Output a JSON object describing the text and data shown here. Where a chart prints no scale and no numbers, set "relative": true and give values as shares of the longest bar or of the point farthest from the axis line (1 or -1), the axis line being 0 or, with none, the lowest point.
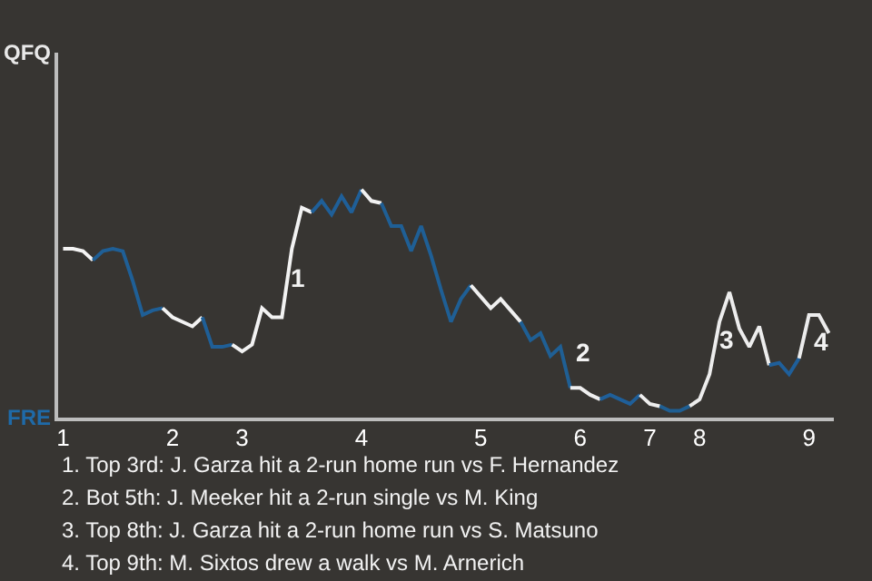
{
  "chart_data": {
    "type": "line",
    "relative": true,
    "marker": "none",
    "line_style": "solid",
    "categories": [
      "1",
      null,
      null,
      null,
      null,
      null,
      null,
      null,
      null,
      null,
      null,
      "2",
      null,
      null,
      null,
      null,
      null,
      null,
      "3",
      null,
      null,
      null,
      null,
      null,
      null,
      null,
      null,
      null,
      null,
      null,
      "4",
      null,
      null,
      null,
      null,
      null,
      null,
      null,
      null,
      null,
      null,
      null,
      "5",
      null,
      null,
      null,
      null,
      null,
      null,
      null,
      null,
      null,
      "6",
      null,
      null,
      null,
      null,
      null,
      null,
      "7",
      null,
      null,
      null,
      null,
      "8",
      null,
      null,
      null,
      null,
      null,
      null,
      null,
      null,
      null,
      null,
      "9",
      null,
      null
    ],
    "series": [
      {
        "color": "#f4f4f4",
        "values": [
          0.74,
          0.74,
          0.73,
          0.69,
          null,
          null,
          null,
          null,
          null,
          null,
          null,
          null,
          null,
          null,
          null,
          null,
          null,
          null,
          null,
          null,
          null,
          null,
          null,
          null,
          null,
          null,
          null,
          null,
          null,
          null,
          null,
          null,
          null,
          null,
          null,
          null,
          null,
          null,
          null,
          null,
          null,
          null,
          null,
          null,
          null,
          null,
          null,
          null,
          null,
          null,
          null,
          null,
          null,
          null,
          null,
          null,
          null,
          null,
          null,
          null,
          null,
          null,
          null,
          null,
          null,
          null,
          null,
          null,
          null,
          null,
          null,
          null,
          null,
          null,
          null,
          null,
          null,
          null
        ]
      },
      {
        "color": "#1f5f96",
        "values": [
          null,
          null,
          null,
          0.69,
          0.73,
          0.74,
          0.73,
          0.6,
          0.45,
          0.47,
          0.48,
          null,
          null,
          null,
          null,
          null,
          null,
          null,
          null,
          null,
          null,
          null,
          null,
          null,
          null,
          null,
          null,
          null,
          null,
          null,
          null,
          null,
          null,
          null,
          null,
          null,
          null,
          null,
          null,
          null,
          null,
          null,
          null,
          null,
          null,
          null,
          null,
          null,
          null,
          null,
          null,
          null,
          null,
          null,
          null,
          null,
          null,
          null,
          null,
          null,
          null,
          null,
          null,
          null,
          null,
          null,
          null,
          null,
          null,
          null,
          null,
          null,
          null,
          null,
          null,
          null,
          null,
          null
        ]
      },
      {
        "color": "#f3f3f3",
        "values": [
          null,
          null,
          null,
          null,
          null,
          null,
          null,
          null,
          null,
          null,
          0.48,
          0.44,
          0.42,
          0.4,
          0.44,
          null,
          null,
          null,
          null,
          null,
          null,
          null,
          null,
          null,
          null,
          null,
          null,
          null,
          null,
          null,
          null,
          null,
          null,
          null,
          null,
          null,
          null,
          null,
          null,
          null,
          null,
          null,
          null,
          null,
          null,
          null,
          null,
          null,
          null,
          null,
          null,
          null,
          null,
          null,
          null,
          null,
          null,
          null,
          null,
          null,
          null,
          null,
          null,
          null,
          null,
          null,
          null,
          null,
          null,
          null,
          null,
          null,
          null,
          null,
          null,
          null,
          null,
          null
        ]
      },
      {
        "color": "#1f5f97",
        "values": [
          null,
          null,
          null,
          null,
          null,
          null,
          null,
          null,
          null,
          null,
          null,
          null,
          null,
          null,
          0.44,
          0.31,
          0.31,
          0.32,
          null,
          null,
          null,
          null,
          null,
          null,
          null,
          null,
          null,
          null,
          null,
          null,
          null,
          null,
          null,
          null,
          null,
          null,
          null,
          null,
          null,
          null,
          null,
          null,
          null,
          null,
          null,
          null,
          null,
          null,
          null,
          null,
          null,
          null,
          null,
          null,
          null,
          null,
          null,
          null,
          null,
          null,
          null,
          null,
          null,
          null,
          null,
          null,
          null,
          null,
          null,
          null,
          null,
          null,
          null,
          null,
          null,
          null,
          null,
          null
        ]
      },
      {
        "color": "#f2f2f2",
        "values": [
          null,
          null,
          null,
          null,
          null,
          null,
          null,
          null,
          null,
          null,
          null,
          null,
          null,
          null,
          null,
          null,
          null,
          0.32,
          0.29,
          0.32,
          0.48,
          0.44,
          0.44,
          0.74,
          0.92,
          0.9,
          null,
          null,
          null,
          null,
          null,
          null,
          null,
          null,
          null,
          null,
          null,
          null,
          null,
          null,
          null,
          null,
          null,
          null,
          null,
          null,
          null,
          null,
          null,
          null,
          null,
          null,
          null,
          null,
          null,
          null,
          null,
          null,
          null,
          null,
          null,
          null,
          null,
          null,
          null,
          null,
          null,
          null,
          null,
          null,
          null,
          null,
          null,
          null,
          null,
          null,
          null,
          null
        ]
      },
      {
        "color": "#1f5f98",
        "values": [
          null,
          null,
          null,
          null,
          null,
          null,
          null,
          null,
          null,
          null,
          null,
          null,
          null,
          null,
          null,
          null,
          null,
          null,
          null,
          null,
          null,
          null,
          null,
          null,
          null,
          0.9,
          0.95,
          0.89,
          0.97,
          0.9,
          1,
          null,
          null,
          null,
          null,
          null,
          null,
          null,
          null,
          null,
          null,
          null,
          null,
          null,
          null,
          null,
          null,
          null,
          null,
          null,
          null,
          null,
          null,
          null,
          null,
          null,
          null,
          null,
          null,
          null,
          null,
          null,
          null,
          null,
          null,
          null,
          null,
          null,
          null,
          null,
          null,
          null,
          null,
          null,
          null,
          null,
          null,
          null
        ]
      },
      {
        "color": "#f1f1f1",
        "values": [
          null,
          null,
          null,
          null,
          null,
          null,
          null,
          null,
          null,
          null,
          null,
          null,
          null,
          null,
          null,
          null,
          null,
          null,
          null,
          null,
          null,
          null,
          null,
          null,
          null,
          null,
          null,
          null,
          null,
          null,
          1,
          0.95,
          0.94,
          null,
          null,
          null,
          null,
          null,
          null,
          null,
          null,
          null,
          null,
          null,
          null,
          null,
          null,
          null,
          null,
          null,
          null,
          null,
          null,
          null,
          null,
          null,
          null,
          null,
          null,
          null,
          null,
          null,
          null,
          null,
          null,
          null,
          null,
          null,
          null,
          null,
          null,
          null,
          null,
          null,
          null,
          null,
          null,
          null
        ]
      },
      {
        "color": "#1f5f95",
        "values": [
          null,
          null,
          null,
          null,
          null,
          null,
          null,
          null,
          null,
          null,
          null,
          null,
          null,
          null,
          null,
          null,
          null,
          null,
          null,
          null,
          null,
          null,
          null,
          null,
          null,
          null,
          null,
          null,
          null,
          null,
          null,
          null,
          0.94,
          0.84,
          0.84,
          0.73,
          0.84,
          0.71,
          0.56,
          0.42,
          0.52,
          0.58,
          null,
          null,
          null,
          null,
          null,
          null,
          null,
          null,
          null,
          null,
          null,
          null,
          null,
          null,
          null,
          null,
          null,
          null,
          null,
          null,
          null,
          null,
          null,
          null,
          null,
          null,
          null,
          null,
          null,
          null,
          null,
          null,
          null,
          null,
          null,
          null
        ]
      },
      {
        "color": "#f0f0f0",
        "values": [
          null,
          null,
          null,
          null,
          null,
          null,
          null,
          null,
          null,
          null,
          null,
          null,
          null,
          null,
          null,
          null,
          null,
          null,
          null,
          null,
          null,
          null,
          null,
          null,
          null,
          null,
          null,
          null,
          null,
          null,
          null,
          null,
          null,
          null,
          null,
          null,
          null,
          null,
          null,
          null,
          null,
          0.58,
          0.53,
          0.48,
          0.52,
          0.47,
          0.42,
          null,
          null,
          null,
          null,
          null,
          null,
          null,
          null,
          null,
          null,
          null,
          null,
          null,
          null,
          null,
          null,
          null,
          null,
          null,
          null,
          null,
          null,
          null,
          null,
          null,
          null,
          null,
          null,
          null,
          null,
          null
        ]
      },
      {
        "color": "#1f5f94",
        "values": [
          null,
          null,
          null,
          null,
          null,
          null,
          null,
          null,
          null,
          null,
          null,
          null,
          null,
          null,
          null,
          null,
          null,
          null,
          null,
          null,
          null,
          null,
          null,
          null,
          null,
          null,
          null,
          null,
          null,
          null,
          null,
          null,
          null,
          null,
          null,
          null,
          null,
          null,
          null,
          null,
          null,
          null,
          null,
          null,
          null,
          null,
          0.42,
          0.34,
          0.37,
          0.27,
          0.31,
          0.13,
          null,
          null,
          null,
          null,
          null,
          null,
          null,
          null,
          null,
          null,
          null,
          null,
          null,
          null,
          null,
          null,
          null,
          null,
          null,
          null,
          null,
          null,
          null,
          null,
          null,
          null
        ]
      },
      {
        "color": "#efefef",
        "values": [
          null,
          null,
          null,
          null,
          null,
          null,
          null,
          null,
          null,
          null,
          null,
          null,
          null,
          null,
          null,
          null,
          null,
          null,
          null,
          null,
          null,
          null,
          null,
          null,
          null,
          null,
          null,
          null,
          null,
          null,
          null,
          null,
          null,
          null,
          null,
          null,
          null,
          null,
          null,
          null,
          null,
          null,
          null,
          null,
          null,
          null,
          null,
          null,
          null,
          null,
          null,
          0.13,
          0.13,
          0.1,
          0.08,
          null,
          null,
          null,
          null,
          null,
          null,
          null,
          null,
          null,
          null,
          null,
          null,
          null,
          null,
          null,
          null,
          null,
          null,
          null,
          null,
          null,
          null,
          null
        ]
      },
      {
        "color": "#1f5f99",
        "values": [
          null,
          null,
          null,
          null,
          null,
          null,
          null,
          null,
          null,
          null,
          null,
          null,
          null,
          null,
          null,
          null,
          null,
          null,
          null,
          null,
          null,
          null,
          null,
          null,
          null,
          null,
          null,
          null,
          null,
          null,
          null,
          null,
          null,
          null,
          null,
          null,
          null,
          null,
          null,
          null,
          null,
          null,
          null,
          null,
          null,
          null,
          null,
          null,
          null,
          null,
          null,
          null,
          null,
          null,
          0.08,
          0.1,
          0.08,
          0.06,
          0.1,
          null,
          null,
          null,
          null,
          null,
          null,
          null,
          null,
          null,
          null,
          null,
          null,
          null,
          null,
          null,
          null,
          null,
          null,
          null
        ]
      },
      {
        "color": "#eeeeee",
        "values": [
          null,
          null,
          null,
          null,
          null,
          null,
          null,
          null,
          null,
          null,
          null,
          null,
          null,
          null,
          null,
          null,
          null,
          null,
          null,
          null,
          null,
          null,
          null,
          null,
          null,
          null,
          null,
          null,
          null,
          null,
          null,
          null,
          null,
          null,
          null,
          null,
          null,
          null,
          null,
          null,
          null,
          null,
          null,
          null,
          null,
          null,
          null,
          null,
          null,
          null,
          null,
          null,
          null,
          null,
          null,
          null,
          null,
          null,
          0.1,
          0.06,
          0.05,
          null,
          null,
          null,
          null,
          null,
          null,
          null,
          null,
          null,
          null,
          null,
          null,
          null,
          null,
          null,
          null,
          null
        ]
      },
      {
        "color": "#1f5f93",
        "values": [
          null,
          null,
          null,
          null,
          null,
          null,
          null,
          null,
          null,
          null,
          null,
          null,
          null,
          null,
          null,
          null,
          null,
          null,
          null,
          null,
          null,
          null,
          null,
          null,
          null,
          null,
          null,
          null,
          null,
          null,
          null,
          null,
          null,
          null,
          null,
          null,
          null,
          null,
          null,
          null,
          null,
          null,
          null,
          null,
          null,
          null,
          null,
          null,
          null,
          null,
          null,
          null,
          null,
          null,
          null,
          null,
          null,
          null,
          null,
          null,
          0.05,
          0.03,
          0.03,
          0.05,
          null,
          null,
          null,
          null,
          null,
          null,
          null,
          null,
          null,
          null,
          null,
          null,
          null,
          null
        ]
      },
      {
        "color": "#ededed",
        "values": [
          null,
          null,
          null,
          null,
          null,
          null,
          null,
          null,
          null,
          null,
          null,
          null,
          null,
          null,
          null,
          null,
          null,
          null,
          null,
          null,
          null,
          null,
          null,
          null,
          null,
          null,
          null,
          null,
          null,
          null,
          null,
          null,
          null,
          null,
          null,
          null,
          null,
          null,
          null,
          null,
          null,
          null,
          null,
          null,
          null,
          null,
          null,
          null,
          null,
          null,
          null,
          null,
          null,
          null,
          null,
          null,
          null,
          null,
          null,
          null,
          null,
          null,
          null,
          0.05,
          0.08,
          0.19,
          0.42,
          0.55,
          0.39,
          0.31,
          0.4,
          0.23,
          null,
          null,
          null,
          null,
          null,
          null
        ]
      },
      {
        "color": "#1f5f9a",
        "values": [
          null,
          null,
          null,
          null,
          null,
          null,
          null,
          null,
          null,
          null,
          null,
          null,
          null,
          null,
          null,
          null,
          null,
          null,
          null,
          null,
          null,
          null,
          null,
          null,
          null,
          null,
          null,
          null,
          null,
          null,
          null,
          null,
          null,
          null,
          null,
          null,
          null,
          null,
          null,
          null,
          null,
          null,
          null,
          null,
          null,
          null,
          null,
          null,
          null,
          null,
          null,
          null,
          null,
          null,
          null,
          null,
          null,
          null,
          null,
          null,
          null,
          null,
          null,
          null,
          null,
          null,
          null,
          null,
          null,
          null,
          null,
          0.23,
          0.24,
          0.19,
          0.26,
          null,
          null,
          null
        ]
      },
      {
        "color": "#ececec",
        "values": [
          null,
          null,
          null,
          null,
          null,
          null,
          null,
          null,
          null,
          null,
          null,
          null,
          null,
          null,
          null,
          null,
          null,
          null,
          null,
          null,
          null,
          null,
          null,
          null,
          null,
          null,
          null,
          null,
          null,
          null,
          null,
          null,
          null,
          null,
          null,
          null,
          null,
          null,
          null,
          null,
          null,
          null,
          null,
          null,
          null,
          null,
          null,
          null,
          null,
          null,
          null,
          null,
          null,
          null,
          null,
          null,
          null,
          null,
          null,
          null,
          null,
          null,
          null,
          null,
          null,
          null,
          null,
          null,
          null,
          null,
          null,
          null,
          null,
          null,
          0.26,
          0.45,
          0.45,
          0.37
        ]
      }
    ],
    "annotations": [
      "QFQ",
      "FRE",
      "1",
      "2",
      "3",
      "4",
      "1. Top 3rd: J. Garza hit a 2-run home run vs F. Hernandez",
      "2. Bot 5th: J. Meeker hit a 2-run single vs M. King",
      "3. Top 8th: J. Garza hit a 2-run home run vs S. Matsuno",
      "4. Top 9th: M. Sixtos drew a walk vs M. Arnerich"
    ]
  }
}
